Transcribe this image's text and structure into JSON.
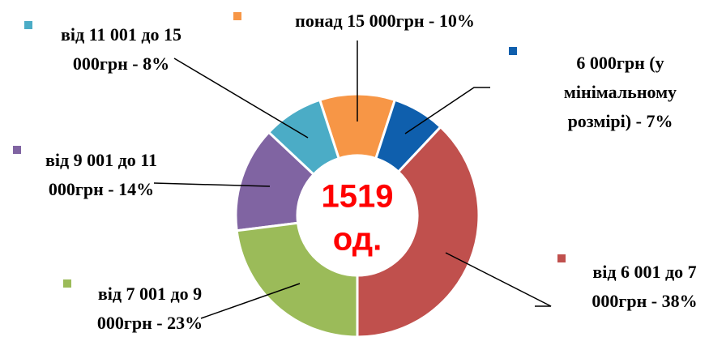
{
  "chart_data": {
    "type": "donut",
    "categories": [
      "6 000грн (у мінімальному розмірі) -",
      "від 6 001 до 7 000грн -",
      "від 7 001 до 9 000грн -",
      "від 9 001 до 11 000грн -",
      "від 11 001 до 15 000грн -",
      "понад 15 000грн -"
    ],
    "values": [
      7,
      38,
      23,
      14,
      8,
      10
    ],
    "value_labels": [
      "7%",
      "38%",
      "23%",
      "14%",
      "8%",
      "10%"
    ],
    "colors": [
      "#0f5fad",
      "#c0504d",
      "#9bbb59",
      "#8064a2",
      "#4bacc6",
      "#f79646"
    ],
    "total": 1519,
    "total_unit": "од."
  }
}
